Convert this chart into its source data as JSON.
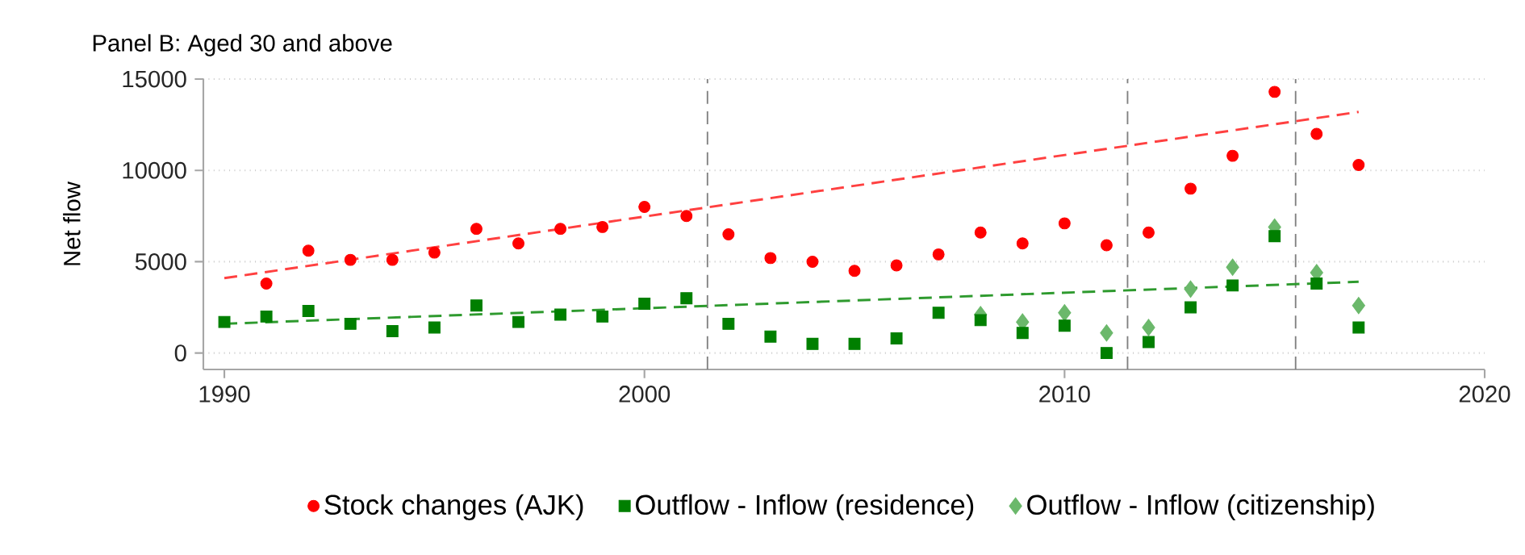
{
  "chart_data": {
    "type": "scatter",
    "title": "Panel B: Aged 30 and above",
    "ylabel": "Net flow",
    "x": [
      1990,
      1991,
      1992,
      1993,
      1994,
      1995,
      1996,
      1997,
      1998,
      1999,
      2000,
      2001,
      2002,
      2003,
      2004,
      2005,
      2006,
      2007,
      2008,
      2009,
      2010,
      2011,
      2012,
      2013,
      2014,
      2015,
      2016,
      2017
    ],
    "series": [
      {
        "name": "Stock changes (AJK)",
        "color": "#ff0000",
        "marker": "circle",
        "values": [
          null,
          3800,
          5600,
          5100,
          5100,
          5500,
          6800,
          6000,
          6800,
          6900,
          8000,
          7500,
          6500,
          5200,
          5000,
          4500,
          4800,
          5400,
          6600,
          6000,
          7100,
          5900,
          6600,
          9000,
          10800,
          14300,
          12000,
          10300
        ]
      },
      {
        "name": "Outflow - Inflow (residence)",
        "color": "#007f00",
        "marker": "square",
        "values": [
          1700,
          2000,
          2300,
          1600,
          1200,
          1400,
          2600,
          1700,
          2100,
          2000,
          2700,
          3000,
          1600,
          900,
          500,
          500,
          800,
          2200,
          1800,
          1100,
          1500,
          0,
          600,
          2500,
          3700,
          6400,
          3800,
          1400
        ]
      },
      {
        "name": "Outflow - Inflow (citizenship)",
        "color": "#6bb86b",
        "marker": "diamond",
        "x": [
          2008,
          2009,
          2010,
          2011,
          2012,
          2013,
          2014,
          2015,
          2016,
          2017
        ],
        "values": [
          2100,
          1700,
          2200,
          1100,
          1400,
          3500,
          4700,
          6900,
          4400,
          2600
        ]
      },
      {
        "type": "line",
        "color": "#ff4040",
        "marker": "none",
        "line_style": "dashed",
        "x": [
          1990,
          2017
        ],
        "values": [
          4100,
          13200
        ]
      },
      {
        "type": "line",
        "color": "#2e9a2e",
        "marker": "none",
        "line_style": "dashed",
        "x": [
          1990,
          2017
        ],
        "values": [
          1600,
          3900
        ]
      }
    ],
    "xlim": [
      1989.5,
      2020
    ],
    "ylim": [
      -900,
      15000
    ],
    "xticks": [
      1990,
      2000,
      2010,
      2020
    ],
    "yticks": [
      0,
      5000,
      10000,
      15000
    ],
    "ref_lines": [
      {
        "axis": "x",
        "value": 2001.5,
        "color": "#808080",
        "line_style": "dashed"
      },
      {
        "axis": "x",
        "value": 2011.5,
        "color": "#808080",
        "line_style": "dashed"
      },
      {
        "axis": "x",
        "value": 2015.5,
        "color": "#808080",
        "line_style": "dashed"
      }
    ],
    "grid": "y",
    "legend": "bottom"
  }
}
